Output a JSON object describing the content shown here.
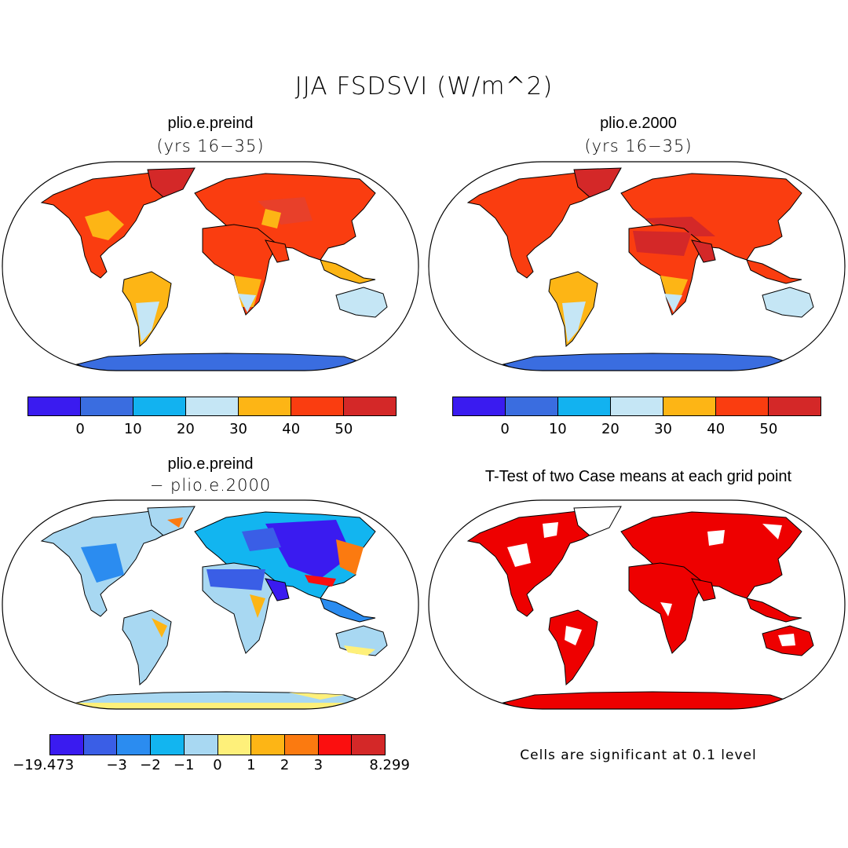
{
  "figure": {
    "title": "JJA FSDSVI (W/m^2)"
  },
  "panels": [
    {
      "id": "tl",
      "title": "plio.e.preind",
      "subtitle": "(yrs 16−35)"
    },
    {
      "id": "tr",
      "title": "plio.e.2000",
      "subtitle": "(yrs 16−35)"
    },
    {
      "id": "bl",
      "title": "plio.e.preind",
      "subtitle": "− plio.e.2000"
    },
    {
      "id": "br",
      "title": "T-Test of two Case means at each grid point",
      "subtitle": ""
    }
  ],
  "colorbars": {
    "top_left": {
      "colors": [
        "#3a1bf0",
        "#3a6de0",
        "#12b2f0",
        "#c5e6f5",
        "#fdb515",
        "#fa3d10",
        "#d42828"
      ],
      "labels": [
        "0",
        "10",
        "20",
        "30",
        "40",
        "50"
      ]
    },
    "top_right": {
      "colors": [
        "#3a1bf0",
        "#3a6de0",
        "#12b2f0",
        "#c5e6f5",
        "#fdb515",
        "#fa3d10",
        "#d42828"
      ],
      "labels": [
        "0",
        "10",
        "20",
        "30",
        "40",
        "50"
      ]
    },
    "difference": {
      "colors": [
        "#3a1bf0",
        "#3a5ee6",
        "#2b8cf0",
        "#12b5f0",
        "#a8d8f2",
        "#fef07a",
        "#fdb515",
        "#fb7a10",
        "#fb0f0f",
        "#d42828"
      ],
      "labels": [
        "−19.473",
        "−3",
        "−2",
        "−1",
        "0",
        "1",
        "2",
        "3",
        "8.299"
      ]
    }
  },
  "ttest": {
    "note": "Cells are significant at 0.1 level",
    "significant_color": "#ee0000"
  }
}
